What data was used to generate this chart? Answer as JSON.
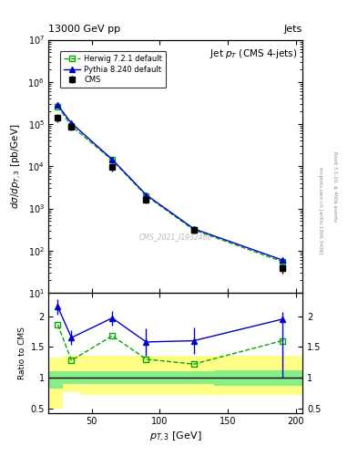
{
  "title_top": "13000 GeV pp",
  "title_right": "Jets",
  "plot_title": "Jet $p_T$ (CMS 4-jets)",
  "watermark": "CMS_2021_I1932460",
  "cms_x": [
    25,
    35,
    65,
    90,
    125,
    190
  ],
  "cms_y": [
    140000.0,
    85000.0,
    9500,
    1600,
    310,
    38
  ],
  "cms_yerr_lo": [
    30000.0,
    15000.0,
    2000,
    300,
    60,
    10
  ],
  "cms_yerr_hi": [
    30000.0,
    15000.0,
    2000,
    300,
    60,
    10
  ],
  "herwig_x": [
    25,
    35,
    65,
    90,
    125,
    190
  ],
  "herwig_y": [
    260000.0,
    90000.0,
    14000.0,
    2000,
    310,
    55
  ],
  "pythia_x": [
    25,
    35,
    65,
    90,
    125,
    190
  ],
  "pythia_y": [
    280000.0,
    105000.0,
    14500.0,
    2100,
    330,
    60
  ],
  "ratio_herwig_x": [
    25,
    35,
    65,
    90,
    125,
    190
  ],
  "ratio_herwig_y": [
    1.86,
    1.28,
    1.68,
    1.3,
    1.22,
    1.6
  ],
  "ratio_herwig_yerr": [
    0.05,
    0.05,
    0.05,
    0.05,
    0.05,
    0.05
  ],
  "ratio_pythia_x": [
    25,
    35,
    65,
    90,
    125,
    190
  ],
  "ratio_pythia_y": [
    2.15,
    1.65,
    1.97,
    1.58,
    1.6,
    1.95
  ],
  "ratio_pythia_yerr_lo": [
    0.12,
    0.12,
    0.12,
    0.22,
    0.22,
    0.95
  ],
  "ratio_pythia_yerr_hi": [
    0.12,
    0.12,
    0.12,
    0.22,
    0.22,
    0.12
  ],
  "band_x_edges": [
    18,
    29,
    42,
    70,
    107,
    140,
    178,
    205
  ],
  "band_green_lo": [
    0.82,
    0.89,
    0.89,
    0.9,
    0.9,
    0.87,
    0.87,
    0.87
  ],
  "band_green_hi": [
    1.1,
    1.1,
    1.1,
    1.1,
    1.1,
    1.12,
    1.12,
    1.12
  ],
  "band_yellow_lo": [
    0.5,
    0.76,
    0.72,
    0.72,
    0.72,
    0.72,
    0.72,
    0.72
  ],
  "band_yellow_hi": [
    1.32,
    1.35,
    1.35,
    1.35,
    1.35,
    1.35,
    1.35,
    1.35
  ],
  "cms_color": "#000000",
  "herwig_color": "#00aa00",
  "pythia_color": "#0000cc",
  "ylim_main": [
    10,
    10000000.0
  ],
  "xlim": [
    18,
    205
  ],
  "ratio_ylim": [
    0.42,
    2.38
  ]
}
